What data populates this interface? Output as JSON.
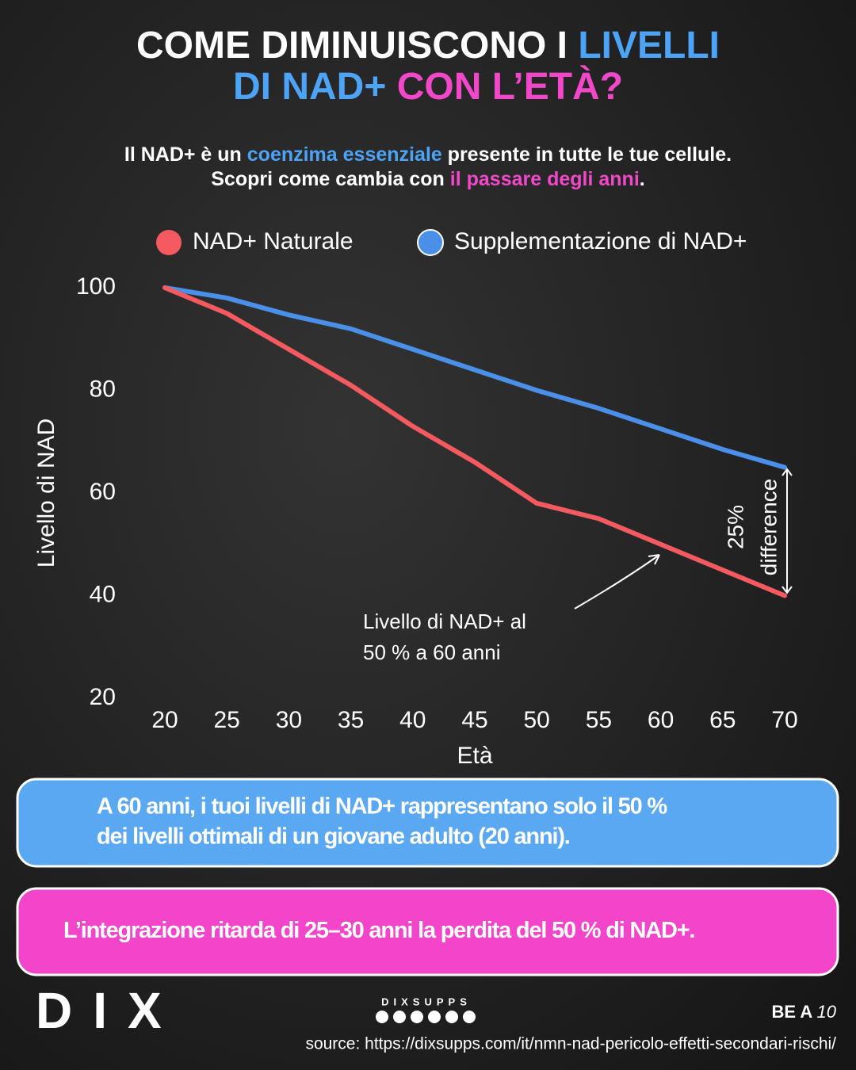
{
  "chart_data": {
    "type": "line",
    "title": [
      [
        {
          "text": "COME DIMINUISCONO I ",
          "color": "#ffffff"
        },
        {
          "text": "LIVELLI",
          "color": "#4da3f5"
        }
      ],
      [
        {
          "text": "DI NAD+ ",
          "color": "#4da3f5"
        },
        {
          "text": "CON L’ETÀ?",
          "color": "#f048c8"
        }
      ]
    ],
    "subtitle": [
      [
        {
          "text": "Il NAD+ è un ",
          "color": "#ffffff"
        },
        {
          "text": "coenzima essenziale",
          "color": "#4da3f5"
        },
        {
          "text": " presente in tutte le tue cellule.",
          "color": "#ffffff"
        }
      ],
      [
        {
          "text": "Scopri come cambia con ",
          "color": "#ffffff"
        },
        {
          "text": "il passare degli anni",
          "color": "#f048c8"
        },
        {
          "text": ".",
          "color": "#ffffff"
        }
      ]
    ],
    "x_label": "Età",
    "y_label": "Livello di NAD",
    "x": [
      20,
      25,
      30,
      35,
      40,
      45,
      50,
      55,
      60,
      65,
      70
    ],
    "series": [
      {
        "name": "NAD+ Naturale",
        "color": "#f45a5f",
        "values": [
          100,
          95,
          88,
          81,
          73,
          66,
          58,
          55,
          50,
          45,
          40
        ]
      },
      {
        "name": "Supplementazione di NAD+",
        "color": "#4a90e8",
        "values": [
          100,
          98,
          94.7,
          92,
          88,
          84,
          80,
          76.5,
          72.5,
          68.5,
          65
        ]
      }
    ],
    "xlim": [
      20,
      70
    ],
    "xticks": [
      20,
      25,
      30,
      35,
      40,
      45,
      50,
      55,
      60,
      65,
      70
    ],
    "ylim": [
      20,
      100
    ],
    "yticks": [
      20,
      40,
      60,
      80,
      100
    ],
    "annotation": [
      "Livello di NAD+ al",
      "50 % a 60 anni"
    ],
    "difference_label": [
      "25%",
      "difference"
    ]
  },
  "callouts": [
    {
      "lines": [
        "A 60 anni, i tuoi livelli di NAD+ rappresentano solo il 50 %",
        "dei livelli ottimali di un giovane adulto (20 anni)."
      ],
      "color": "#5aa8f2"
    },
    {
      "lines": [
        "L’integrazione ritarda di 25–30 anni la perdita del 50 % di NAD+."
      ],
      "color": "#f245c9"
    }
  ],
  "footer": {
    "logo": "DIX",
    "brand": "DIXSUPPS",
    "slogan": [
      "BE A ",
      "10"
    ],
    "source": "source: https://dixsupps.com/it/nmn-nad-pericolo-effetti-secondari-rischi/"
  }
}
